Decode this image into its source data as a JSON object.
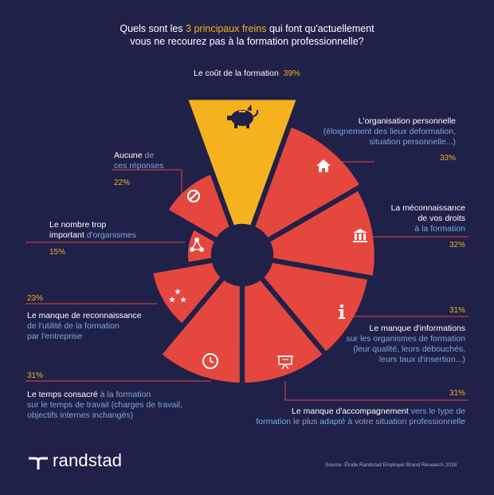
{
  "title": {
    "before": "Quels sont les ",
    "highlight": "3 principaux freins",
    "after": " qui font qu'actuellement",
    "line2": "vous ne recourez pas à la formation professionnelle?"
  },
  "labels": {
    "cout": {
      "main": "Le coût de la formation",
      "value": "39%"
    },
    "organisation": {
      "main": "L'organisation personnelle",
      "sub1": "(éloignement des lieux deformation,",
      "sub2": "situation personnelle...)",
      "value": "33%"
    },
    "meconnaissance": {
      "main1": "La méconnaissance",
      "main2": "de vos droits",
      "sub": "à la formation",
      "value": "32%"
    },
    "informations": {
      "value": "31%",
      "main": "Le manque d'informations",
      "sub1": "sur les organismes de formation",
      "sub2": "(leur qualité, leurs débouchés,",
      "sub3": "leurs taux d'insertion...)"
    },
    "accompagnement": {
      "value": "31%",
      "main": "Le manque d'accompagnement",
      "sub_inline": " vers le type de",
      "sub2": "formation le plus adapté à votre situation professionnelle"
    },
    "temps": {
      "value": "31%",
      "main": "Le temps consacré ",
      "main_sub": "à la formation",
      "sub1": "sur le temps de travail (charges de travail,",
      "sub2": "objectifs internes inchangés)"
    },
    "reconnaissance": {
      "value": "23%",
      "main": "Le manque de reconnaissance",
      "sub1": "de l'utilité de la formation",
      "sub2": "par l'entreprise"
    },
    "organismes": {
      "main1": "Le nombre trop",
      "main2": "important",
      "sub": " d'organismes",
      "value": "15%"
    },
    "aucune": {
      "main": "Aucune",
      "sub_inline": " de",
      "sub2": "ces réponses",
      "value": "22%"
    }
  },
  "logo": "randstad",
  "source": "Source: Étude Randstad Employer Brand Research 2018",
  "colors": {
    "background": "#1f2149",
    "highlight": "#f5b21e",
    "segment": "#e5473f",
    "line": "#e5473f",
    "subtext": "#7fa8d9"
  },
  "icons": [
    "piggy-bank-icon",
    "house-icon",
    "bank-icon",
    "info-icon",
    "presentation-board-icon",
    "clock-icon",
    "stars-icon",
    "network-icon",
    "prohibited-icon"
  ],
  "chart_data": {
    "type": "pie",
    "categories": [
      "Le coût de la formation",
      "L'organisation personnelle",
      "La méconnaissance de vos droits à la formation",
      "Le manque d'informations",
      "Le manque d'accompagnement",
      "Le temps consacré à la formation",
      "Le manque de reconnaissance",
      "Le nombre trop important d'organismes",
      "Aucune de ces réponses"
    ],
    "values": [
      39,
      33,
      32,
      31,
      31,
      31,
      23,
      15,
      22
    ],
    "unit": "%",
    "highlight_index": 0
  }
}
